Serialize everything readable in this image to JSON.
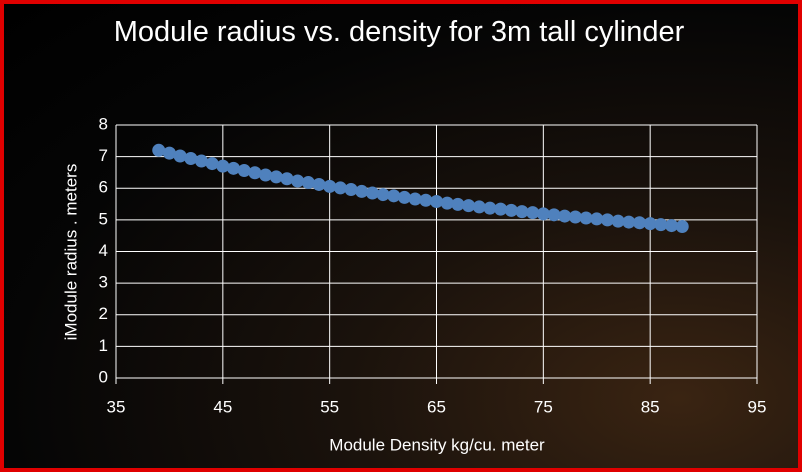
{
  "chart_data": {
    "type": "scatter",
    "title": "Module radius vs. density for 3m tall cylinder",
    "x_label": "Module Density kg/cu. meter",
    "y_label": "iModule radius . meters",
    "color": "#4f81bd",
    "grid": true,
    "xlim": [
      35,
      95
    ],
    "xticks": [
      35,
      45,
      55,
      65,
      75,
      85,
      95
    ],
    "ylim": [
      0,
      8
    ],
    "yticks": [
      0,
      1,
      2,
      3,
      4,
      5,
      6,
      7,
      8
    ],
    "x": [
      39,
      40,
      41,
      42,
      43,
      44,
      45,
      46,
      47,
      48,
      49,
      50,
      51,
      52,
      53,
      54,
      55,
      56,
      57,
      58,
      59,
      60,
      61,
      62,
      63,
      64,
      65,
      66,
      67,
      68,
      69,
      70,
      71,
      72,
      73,
      74,
      75,
      76,
      77,
      78,
      79,
      80,
      81,
      82,
      83,
      84,
      85,
      86,
      87,
      88
    ],
    "values": [
      7.2,
      7.11,
      7.02,
      6.94,
      6.86,
      6.78,
      6.7,
      6.63,
      6.56,
      6.49,
      6.42,
      6.36,
      6.3,
      6.23,
      6.18,
      6.12,
      6.06,
      6.01,
      5.96,
      5.9,
      5.85,
      5.8,
      5.76,
      5.71,
      5.66,
      5.62,
      5.58,
      5.53,
      5.49,
      5.45,
      5.41,
      5.37,
      5.34,
      5.3,
      5.26,
      5.23,
      5.19,
      5.16,
      5.12,
      5.09,
      5.06,
      5.03,
      5.0,
      4.96,
      4.93,
      4.91,
      4.88,
      4.85,
      4.82,
      4.79
    ]
  }
}
